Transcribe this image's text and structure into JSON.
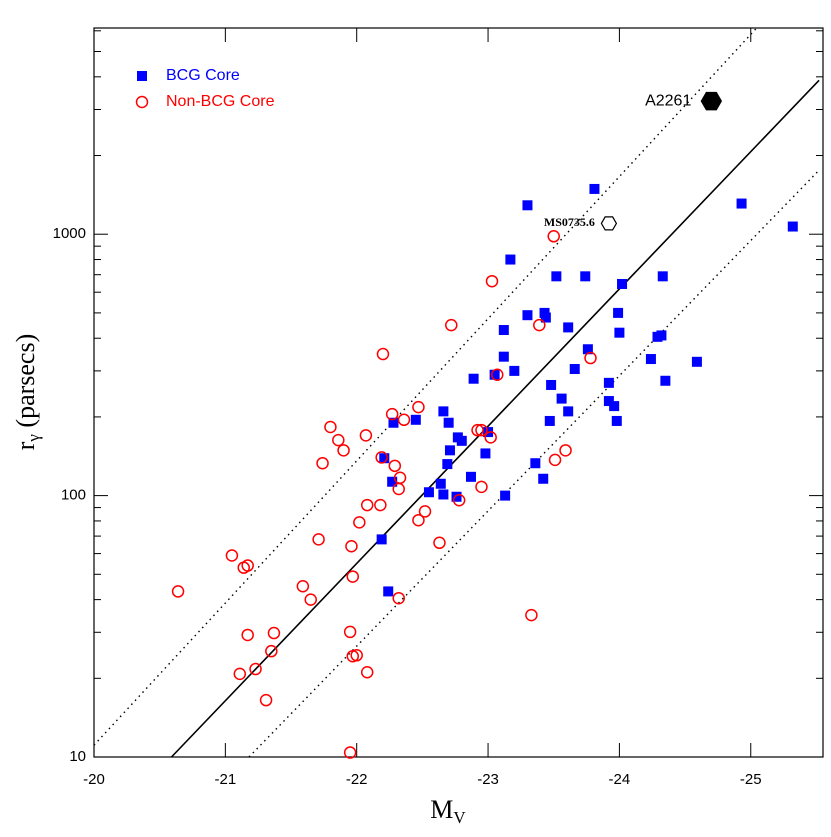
{
  "chart_data": {
    "type": "scatter",
    "xlabel": [
      "M",
      "V"
    ],
    "ylabel": [
      "r",
      "γ",
      " (parsecs)"
    ],
    "xlim": [
      -20,
      -25.55
    ],
    "xticks": [
      -20,
      -21,
      -22,
      -23,
      -24,
      -25
    ],
    "ylim": [
      10,
      6150
    ],
    "yscale": "log",
    "yticks": [
      10,
      100,
      1000
    ],
    "yticks_minor": [
      20,
      30,
      40,
      50,
      60,
      70,
      80,
      90,
      200,
      300,
      400,
      500,
      600,
      700,
      800,
      900,
      2000,
      3000,
      4000,
      5000,
      6000
    ],
    "legend": "upper left",
    "series": [
      {
        "name": "BCG Core",
        "color": "#0000ff",
        "marker": "square",
        "x": [
          -23.3,
          -23.81,
          -24.93,
          -25.32,
          -23.17,
          -23.52,
          -23.74,
          -24.02,
          -24.33,
          -23.3,
          -23.43,
          -23.44,
          -23.12,
          -23.61,
          -23.99,
          -23.76,
          -24.0,
          -24.29,
          -24.32,
          -23.12,
          -23.2,
          -23.05,
          -24.24,
          -24.59,
          -22.89,
          -23.92,
          -23.48,
          -23.66,
          -24.35,
          -23.56,
          -23.92,
          -23.96,
          -23.61,
          -22.66,
          -22.28,
          -22.45,
          -22.7,
          -23.47,
          -23.98,
          -22.77,
          -22.8,
          -23.0,
          -22.98,
          -22.71,
          -22.69,
          -22.21,
          -23.36,
          -22.87,
          -22.27,
          -23.42,
          -22.55,
          -22.64,
          -22.76,
          -23.13,
          -22.66,
          -22.19,
          -22.24
        ],
        "values": [
          1290,
          1490,
          1310,
          1070,
          800,
          690,
          690,
          645,
          690,
          490,
          500,
          480,
          430,
          440,
          500,
          363,
          420,
          405,
          410,
          340,
          300,
          290,
          333,
          325,
          280,
          270,
          265,
          305,
          275,
          235,
          230,
          220,
          210,
          210,
          190,
          195,
          190,
          193,
          193,
          167,
          162,
          175,
          145,
          149,
          132,
          139,
          133,
          118,
          113,
          116,
          103,
          111,
          99,
          100,
          101,
          68,
          43
        ]
      },
      {
        "name": "Non-BCG Core",
        "color": "#ff0000",
        "marker": "circle",
        "x": [
          -20.64,
          -21.05,
          -21.14,
          -21.17,
          -21.59,
          -21.65,
          -21.71,
          -21.17,
          -21.37,
          -21.35,
          -21.23,
          -21.11,
          -21.31,
          -21.95,
          -22.0,
          -21.97,
          -22.08,
          -21.95,
          -21.96,
          -21.97,
          -22.02,
          -22.08,
          -22.18,
          -22.32,
          -22.52,
          -22.47,
          -22.63,
          -22.47,
          -22.27,
          -22.36,
          -22.2,
          -21.8,
          -21.86,
          -21.9,
          -21.74,
          -22.07,
          -22.19,
          -22.29,
          -22.33,
          -22.32,
          -22.72,
          -23.03,
          -23.5,
          -23.78,
          -23.07,
          -23.39,
          -22.92,
          -22.95,
          -23.02,
          -22.78,
          -22.95,
          -23.51,
          -23.59,
          -23.33
        ],
        "values": [
          43,
          59,
          53,
          54,
          45,
          40,
          68,
          29.3,
          29.8,
          25.4,
          21.7,
          20.8,
          16.5,
          30.1,
          24.5,
          24.3,
          21.1,
          10.4,
          64,
          49,
          79,
          92,
          92,
          40.5,
          87,
          80.5,
          66,
          218,
          205,
          195,
          348,
          183,
          163,
          149,
          133,
          170,
          140,
          130,
          117,
          106,
          449,
          661,
          982,
          336,
          290,
          449,
          178,
          178,
          167,
          96,
          108,
          137,
          149,
          34.9
        ]
      }
    ],
    "lines": [
      {
        "style": "solid",
        "x": [
          -20.59,
          -25.52
        ],
        "y": [
          10,
          3880
        ]
      },
      {
        "style": "dotted",
        "x": [
          -20,
          -25.045
        ],
        "y": [
          11.1,
          6150
        ]
      },
      {
        "style": "dotted",
        "x": [
          -21.18,
          -25.52
        ],
        "y": [
          10,
          1757
        ]
      }
    ],
    "annotations": [
      {
        "text": "A2261",
        "x": -24.7,
        "y": 3230,
        "marker": "filled-hexagon"
      },
      {
        "text": "MS0735.6",
        "x": -23.92,
        "y": 1100,
        "marker": "open-hexagon"
      }
    ]
  }
}
